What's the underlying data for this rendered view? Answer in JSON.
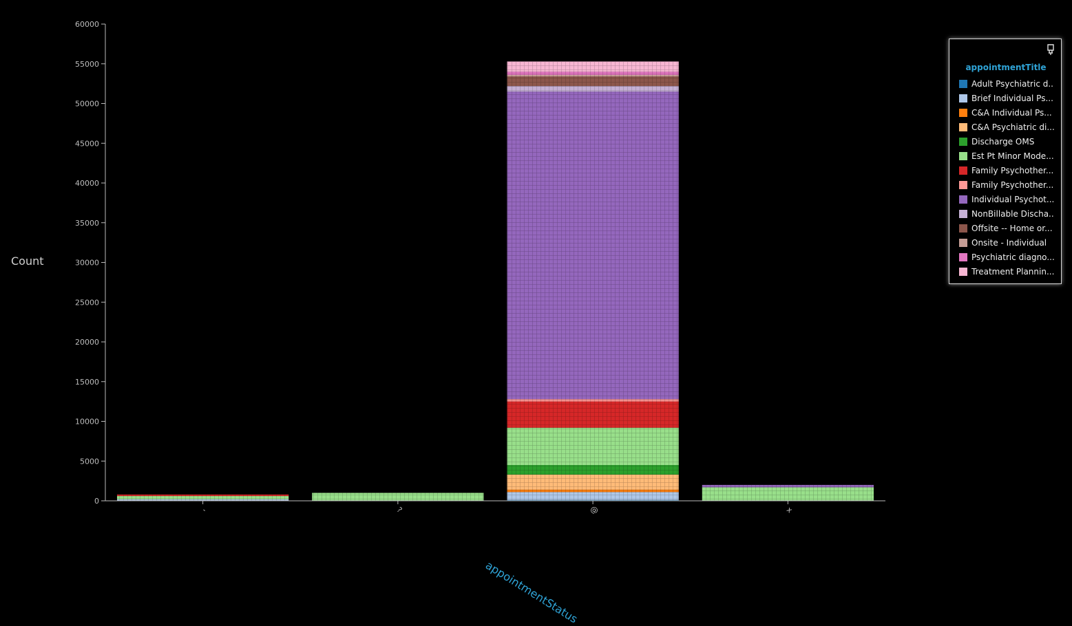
{
  "chart_data": {
    "type": "bar",
    "stacked": true,
    "xlabel": "appointmentStatus",
    "ylabel": "Count",
    "ylim": [
      0,
      60000
    ],
    "yticks": [
      0,
      5000,
      10000,
      15000,
      20000,
      25000,
      30000,
      35000,
      40000,
      45000,
      50000,
      55000,
      60000
    ],
    "categories": [
      "-",
      "?",
      "@",
      "x"
    ],
    "legend_title": "appointmentTitle",
    "legend_position": "top-right",
    "series": [
      {
        "name": "Adult Psychiatric d...",
        "color": "#1f77b4",
        "values": [
          0,
          0,
          100,
          0
        ]
      },
      {
        "name": "Brief Individual Ps...",
        "color": "#aec7e8",
        "values": [
          200,
          0,
          1000,
          0
        ]
      },
      {
        "name": "C&A Individual Ps...",
        "color": "#ff7f0e",
        "values": [
          0,
          0,
          300,
          0
        ]
      },
      {
        "name": "C&A Psychiatric di...",
        "color": "#ffbb78",
        "values": [
          0,
          0,
          1900,
          0
        ]
      },
      {
        "name": "Discharge OMS",
        "color": "#2ca02c",
        "values": [
          0,
          0,
          1200,
          0
        ]
      },
      {
        "name": "Est Pt Minor Mode...",
        "color": "#98df8a",
        "values": [
          400,
          1000,
          4700,
          1700
        ]
      },
      {
        "name": "Family Psychother...",
        "color": "#d62728",
        "values": [
          200,
          0,
          3300,
          0
        ]
      },
      {
        "name": "Family Psychother...",
        "color": "#ff9896",
        "values": [
          0,
          0,
          300,
          0
        ]
      },
      {
        "name": "Individual Psychot...",
        "color": "#9467bd",
        "values": [
          0,
          0,
          38700,
          300
        ]
      },
      {
        "name": "NonBillable Discha...",
        "color": "#c5b0d5",
        "values": [
          0,
          0,
          700,
          0
        ]
      },
      {
        "name": "Offsite -- Home or...",
        "color": "#8c564b",
        "values": [
          0,
          0,
          1200,
          0
        ]
      },
      {
        "name": "Onsite - Individual",
        "color": "#c49c94",
        "values": [
          0,
          0,
          200,
          0
        ]
      },
      {
        "name": "Psychiatric diagno...",
        "color": "#e377c2",
        "values": [
          0,
          0,
          400,
          0
        ]
      },
      {
        "name": "Treatment Plannin...",
        "color": "#f7b6d2",
        "values": [
          0,
          0,
          1300,
          0
        ]
      }
    ]
  },
  "colors": {
    "background": "#000000",
    "axis": "#bdbdbd",
    "accent": "#2fa3d6"
  },
  "legend_pin_icon": "pin-icon"
}
